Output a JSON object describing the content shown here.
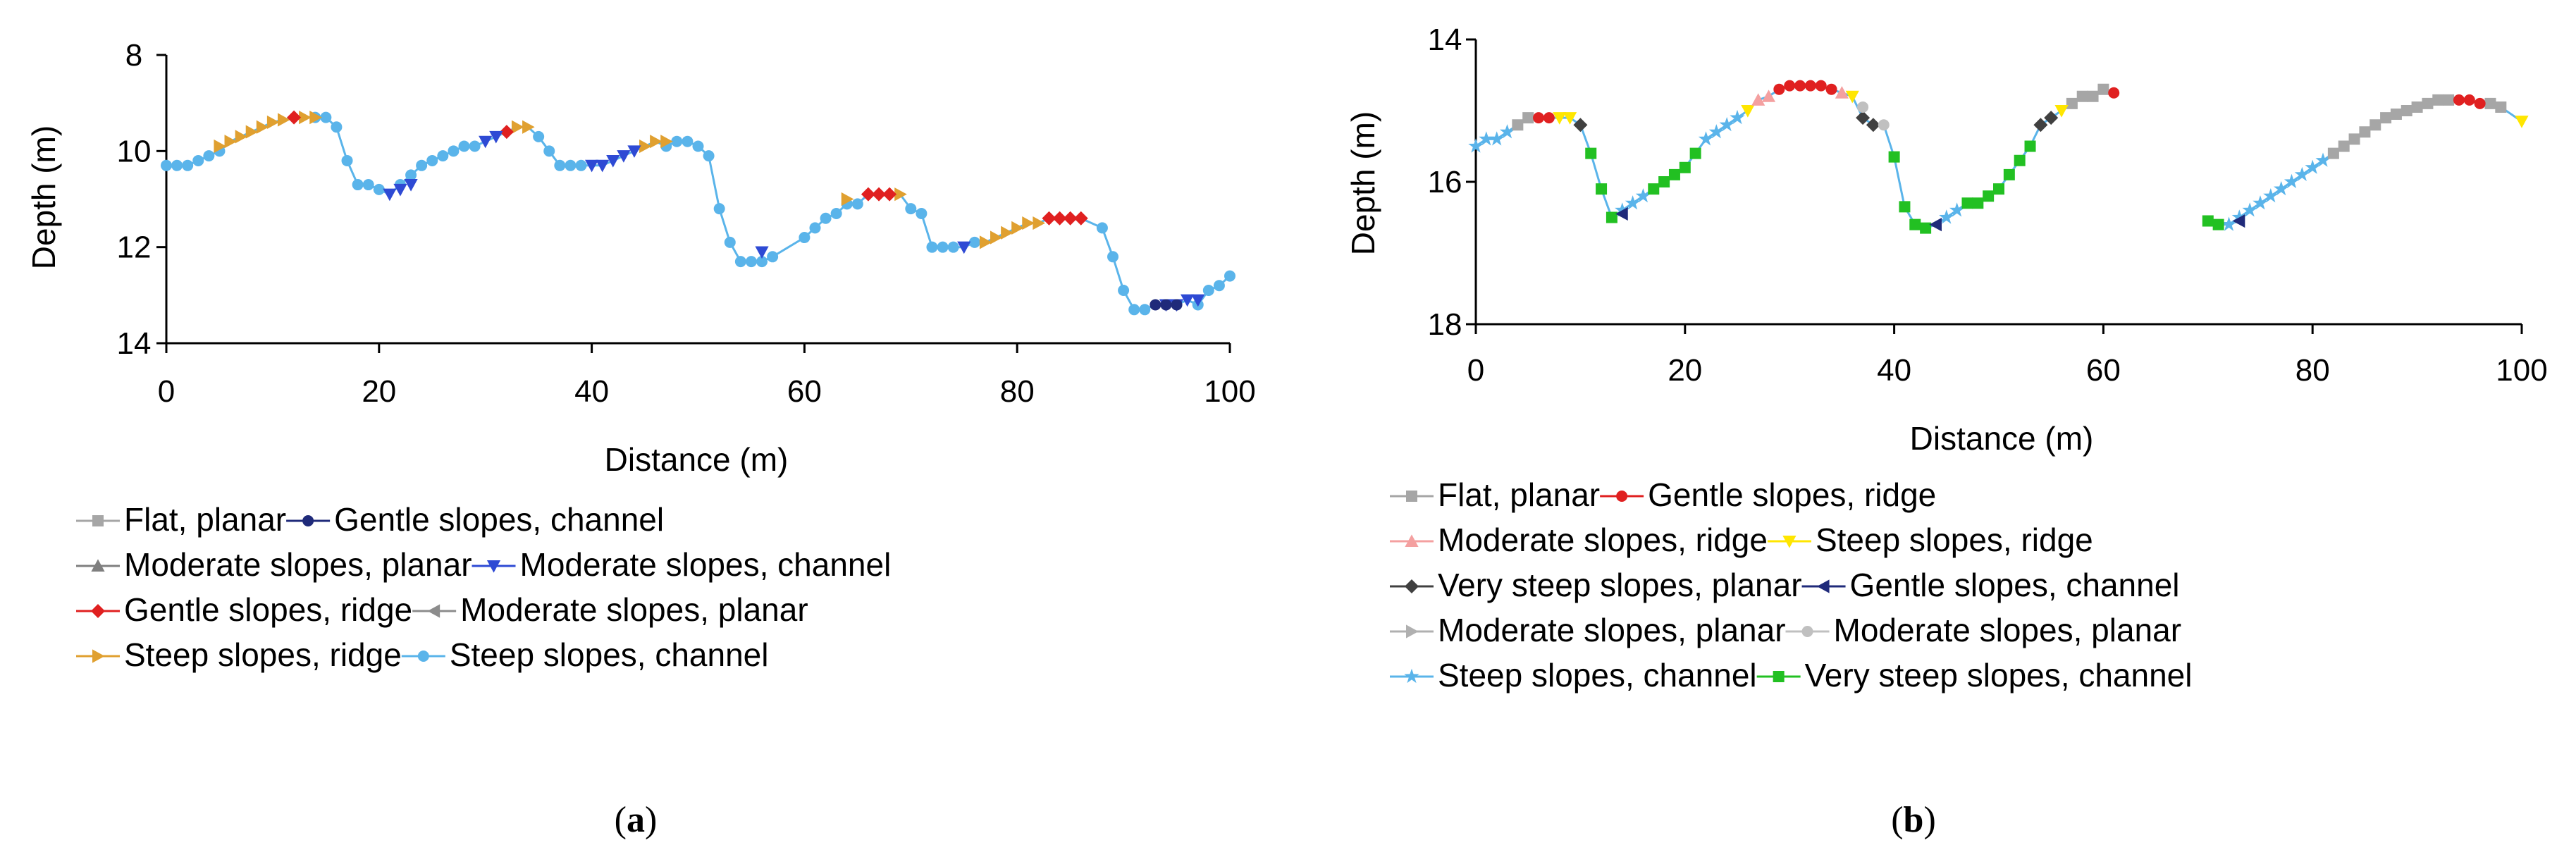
{
  "chart_data": [
    {
      "type": "line",
      "panel_label": "(a)",
      "panel_letter": "a",
      "xlabel": "Distance (m)",
      "ylabel": "Depth (m)",
      "xlim": [
        0,
        100
      ],
      "ylim": [
        8,
        14
      ],
      "y_inverted": true,
      "xticks": [
        0,
        20,
        40,
        60,
        80,
        100
      ],
      "yticks": [
        8,
        10,
        12,
        14
      ],
      "grid": false,
      "legend_position": "below",
      "legend": [
        {
          "name": "Flat, planar",
          "color": "#a6a6a6",
          "marker": "square"
        },
        {
          "name": "Gentle slopes, channel",
          "color": "#1f2a7a",
          "marker": "circle"
        },
        {
          "name": "Moderate slopes, planar",
          "color": "#7f7f7f",
          "marker": "triangle-up"
        },
        {
          "name": "Moderate slopes, channel",
          "color": "#2e4ad4",
          "marker": "triangle-down"
        },
        {
          "name": "Gentle slopes, ridge",
          "color": "#e02020",
          "marker": "diamond"
        },
        {
          "name": "Moderate slopes, planar",
          "color": "#8c8c8c",
          "marker": "triangle-left"
        },
        {
          "name": "Steep slopes, ridge",
          "color": "#e0a030",
          "marker": "triangle-right"
        },
        {
          "name": "Steep slopes, channel",
          "color": "#5ab4ea",
          "marker": "circle"
        }
      ],
      "series": [
        {
          "name": "Steep slopes, channel",
          "color": "#5ab4ea",
          "marker": "circle",
          "x": [
            0,
            1,
            2,
            3,
            4,
            5,
            14,
            15,
            16,
            17,
            18,
            19,
            20,
            22,
            23,
            24,
            25,
            26,
            27,
            28,
            29,
            35,
            36,
            37,
            38,
            39,
            47,
            48,
            49,
            50,
            51,
            52,
            53,
            54,
            55,
            56,
            57,
            60,
            61,
            62,
            63,
            64,
            65,
            70,
            71,
            72,
            73,
            74,
            76,
            88,
            89,
            90,
            91,
            92,
            97,
            98,
            99,
            100
          ],
          "y": [
            10.3,
            10.3,
            10.3,
            10.2,
            10.1,
            10.0,
            9.3,
            9.3,
            9.5,
            10.2,
            10.7,
            10.7,
            10.8,
            10.7,
            10.5,
            10.3,
            10.2,
            10.1,
            10.0,
            9.9,
            9.9,
            9.7,
            10.0,
            10.3,
            10.3,
            10.3,
            9.9,
            9.8,
            9.8,
            9.9,
            10.1,
            11.2,
            11.9,
            12.3,
            12.3,
            12.3,
            12.2,
            11.8,
            11.6,
            11.4,
            11.3,
            11.1,
            11.1,
            11.2,
            11.3,
            12.0,
            12.0,
            12.0,
            11.9,
            11.6,
            12.2,
            12.9,
            13.3,
            13.3,
            13.2,
            12.9,
            12.8,
            12.6
          ]
        },
        {
          "name": "Steep slopes, ridge",
          "color": "#e0a030",
          "marker": "triangle-right",
          "x": [
            5,
            6,
            7,
            8,
            9,
            10,
            11,
            13,
            14,
            33,
            34,
            45,
            46,
            47,
            64,
            69,
            77,
            78,
            79,
            80,
            81,
            82
          ],
          "y": [
            9.9,
            9.8,
            9.7,
            9.6,
            9.5,
            9.4,
            9.35,
            9.3,
            9.3,
            9.5,
            9.5,
            9.9,
            9.8,
            9.8,
            11.0,
            10.9,
            11.9,
            11.8,
            11.7,
            11.6,
            11.5,
            11.5
          ]
        },
        {
          "name": "Gentle slopes, ridge",
          "color": "#e02020",
          "marker": "diamond",
          "x": [
            12,
            32,
            66,
            67,
            68,
            83,
            84,
            85,
            86
          ],
          "y": [
            9.3,
            9.6,
            10.9,
            10.9,
            10.9,
            11.4,
            11.4,
            11.4,
            11.4
          ]
        },
        {
          "name": "Moderate slopes, channel",
          "color": "#2e4ad4",
          "marker": "triangle-down",
          "x": [
            21,
            22,
            23,
            30,
            31,
            40,
            41,
            42,
            43,
            44,
            56,
            75,
            94,
            95,
            96,
            97
          ],
          "y": [
            10.9,
            10.8,
            10.7,
            9.8,
            9.7,
            10.3,
            10.3,
            10.2,
            10.1,
            10.0,
            12.1,
            12.0,
            13.2,
            13.2,
            13.1,
            13.1
          ]
        },
        {
          "name": "Gentle slopes, channel",
          "color": "#1f2a7a",
          "marker": "circle",
          "x": [
            93,
            94,
            95
          ],
          "y": [
            13.2,
            13.2,
            13.2
          ]
        }
      ]
    },
    {
      "type": "line",
      "panel_label": "(b)",
      "panel_letter": "b",
      "xlabel": "Distance (m)",
      "ylabel": "Depth (m)",
      "xlim": [
        0,
        100
      ],
      "ylim": [
        14,
        18
      ],
      "y_inverted": true,
      "xticks": [
        0,
        20,
        40,
        60,
        80,
        100
      ],
      "yticks": [
        14,
        16,
        18
      ],
      "grid": false,
      "legend_position": "below",
      "legend": [
        {
          "name": "Flat, planar",
          "color": "#a6a6a6",
          "marker": "square"
        },
        {
          "name": "Gentle slopes, ridge",
          "color": "#e02020",
          "marker": "circle"
        },
        {
          "name": "Moderate slopes, ridge",
          "color": "#f4a0a0",
          "marker": "triangle-up"
        },
        {
          "name": "Steep slopes, ridge",
          "color": "#ffe600",
          "marker": "triangle-down"
        },
        {
          "name": "Very steep slopes, planar",
          "color": "#404040",
          "marker": "diamond"
        },
        {
          "name": "Gentle slopes, channel",
          "color": "#1f2a7a",
          "marker": "triangle-left"
        },
        {
          "name": "Moderate slopes, planar",
          "color": "#b0b0b0",
          "marker": "triangle-right"
        },
        {
          "name": "Moderate slopes, planar",
          "color": "#c0c0c0",
          "marker": "circle"
        },
        {
          "name": "Steep slopes, channel",
          "color": "#5ab4ea",
          "marker": "star"
        },
        {
          "name": "Very steep slopes, channel",
          "color": "#22c022",
          "marker": "square"
        }
      ],
      "series": [
        {
          "name": "Steep slopes, channel",
          "color": "#5ab4ea",
          "marker": "star",
          "x": [
            0,
            1,
            2,
            3,
            14,
            15,
            16,
            22,
            23,
            24,
            25,
            45,
            46,
            72,
            73,
            74,
            75,
            76,
            77,
            78,
            79,
            80,
            81
          ],
          "y": [
            15.5,
            15.4,
            15.4,
            15.3,
            16.4,
            16.3,
            16.2,
            15.4,
            15.3,
            15.2,
            15.1,
            16.5,
            16.4,
            16.6,
            16.5,
            16.4,
            16.3,
            16.2,
            16.1,
            16.0,
            15.9,
            15.8,
            15.7
          ]
        },
        {
          "name": "Flat, planar",
          "color": "#a6a6a6",
          "marker": "square",
          "x": [
            4,
            5,
            57,
            58,
            59,
            60,
            82,
            83,
            84,
            85,
            86,
            87,
            88,
            89,
            90,
            91,
            92,
            93,
            97,
            98
          ],
          "y": [
            15.2,
            15.1,
            14.9,
            14.8,
            14.8,
            14.7,
            15.6,
            15.5,
            15.4,
            15.3,
            15.2,
            15.1,
            15.05,
            15.0,
            14.95,
            14.9,
            14.85,
            14.85,
            14.9,
            14.95
          ]
        },
        {
          "name": "Gentle slopes, ridge",
          "color": "#e02020",
          "marker": "circle",
          "x": [
            6,
            7,
            29,
            30,
            31,
            32,
            33,
            34,
            61,
            94,
            95,
            96
          ],
          "y": [
            15.1,
            15.1,
            14.7,
            14.65,
            14.65,
            14.65,
            14.65,
            14.7,
            14.75,
            14.85,
            14.85,
            14.9
          ]
        },
        {
          "name": "Steep slopes, ridge",
          "color": "#ffe600",
          "marker": "triangle-down",
          "x": [
            8,
            9,
            26,
            36,
            56,
            100
          ],
          "y": [
            15.1,
            15.1,
            15.0,
            14.8,
            15.0,
            15.15
          ]
        },
        {
          "name": "Very steep slopes, planar",
          "color": "#404040",
          "marker": "diamond",
          "x": [
            10,
            37,
            38,
            54,
            55
          ],
          "y": [
            15.2,
            15.1,
            15.2,
            15.2,
            15.1
          ]
        },
        {
          "name": "Very steep slopes, channel",
          "color": "#22c022",
          "marker": "square",
          "x": [
            11,
            12,
            13,
            17,
            18,
            19,
            20,
            21,
            40,
            41,
            42,
            43,
            47,
            48,
            49,
            50,
            51,
            52,
            53,
            70,
            71
          ],
          "y": [
            15.6,
            16.1,
            16.5,
            16.1,
            16.0,
            15.9,
            15.8,
            15.6,
            15.65,
            16.35,
            16.6,
            16.65,
            16.3,
            16.3,
            16.2,
            16.1,
            15.9,
            15.7,
            15.5,
            16.55,
            16.6
          ]
        },
        {
          "name": "Gentle slopes, channel",
          "color": "#1f2a7a",
          "marker": "triangle-left",
          "x": [
            14,
            44,
            73
          ],
          "y": [
            16.45,
            16.6,
            16.55
          ]
        },
        {
          "name": "Moderate slopes, ridge",
          "color": "#f4a0a0",
          "marker": "triangle-up",
          "x": [
            27,
            28,
            35
          ],
          "y": [
            14.85,
            14.8,
            14.75
          ]
        },
        {
          "name": "Moderate slopes, planar",
          "color": "#c0c0c0",
          "marker": "circle",
          "x": [
            37,
            39
          ],
          "y": [
            14.95,
            15.2
          ]
        }
      ]
    }
  ]
}
